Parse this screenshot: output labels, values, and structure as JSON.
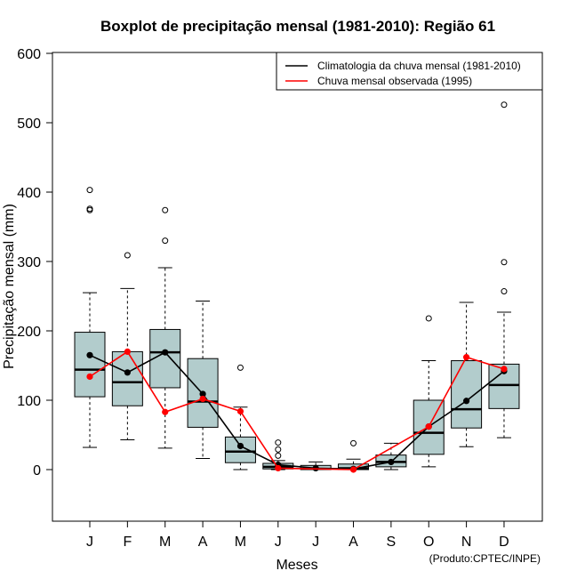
{
  "chart_data": {
    "type": "boxplot",
    "title": "Boxplot de precipitação mensal (1981-2010): Região 61",
    "xlabel": "Meses",
    "ylabel": "Precipitação mensal (mm)",
    "ylim": [
      -75,
      600
    ],
    "yticks": [
      0,
      100,
      200,
      300,
      400,
      500,
      600
    ],
    "categories": [
      "J",
      "F",
      "M",
      "A",
      "M",
      "J",
      "J",
      "A",
      "S",
      "O",
      "N",
      "D"
    ],
    "boxes": [
      {
        "month": "J",
        "min": 32,
        "q1": 105,
        "median": 144,
        "q3": 198,
        "max": 255,
        "outliers": [
          374,
          376,
          403
        ]
      },
      {
        "month": "F",
        "min": 43,
        "q1": 92,
        "median": 126,
        "q3": 170,
        "max": 261,
        "outliers": [
          309
        ]
      },
      {
        "month": "M",
        "min": 31,
        "q1": 118,
        "median": 169,
        "q3": 202,
        "max": 291,
        "outliers": [
          330,
          374
        ]
      },
      {
        "month": "A",
        "min": 16,
        "q1": 61,
        "median": 98,
        "q3": 160,
        "max": 243,
        "outliers": []
      },
      {
        "month": "M",
        "min": 0,
        "q1": 10,
        "median": 26,
        "q3": 47,
        "max": 90,
        "outliers": [
          147
        ]
      },
      {
        "month": "J",
        "min": 0,
        "q1": 1,
        "median": 4,
        "q3": 9,
        "max": 13,
        "outliers": [
          20,
          29,
          39
        ]
      },
      {
        "month": "J",
        "min": 0,
        "q1": 0,
        "median": 1,
        "q3": 6,
        "max": 11,
        "outliers": []
      },
      {
        "month": "A",
        "min": 0,
        "q1": 0,
        "median": 2,
        "q3": 8,
        "max": 15,
        "outliers": [
          38
        ]
      },
      {
        "month": "S",
        "min": 0,
        "q1": 4,
        "median": 11,
        "q3": 21,
        "max": 38,
        "outliers": []
      },
      {
        "month": "O",
        "min": 4,
        "q1": 22,
        "median": 53,
        "q3": 100,
        "max": 157,
        "outliers": [
          218
        ]
      },
      {
        "month": "N",
        "min": 33,
        "q1": 60,
        "median": 87,
        "q3": 157,
        "max": 241,
        "outliers": []
      },
      {
        "month": "D",
        "min": 46,
        "q1": 88,
        "median": 122,
        "q3": 152,
        "max": 227,
        "outliers": [
          257,
          299,
          526
        ]
      }
    ],
    "series": [
      {
        "name": "Climatologia da chuva mensal (1981-2010)",
        "color": "#000000",
        "values": [
          165,
          140,
          169,
          109,
          34,
          7,
          2,
          1,
          11,
          62,
          99,
          142
        ]
      },
      {
        "name": "Chuva mensal observada (1995)",
        "color": "#ff0000",
        "values": [
          134,
          170,
          83,
          102,
          84,
          2,
          null,
          0,
          null,
          62,
          162,
          145
        ]
      }
    ],
    "legend_position": "top-right",
    "box_fill": "#b2cccc"
  },
  "credit": "(Produto:CPTEC/INPE)"
}
